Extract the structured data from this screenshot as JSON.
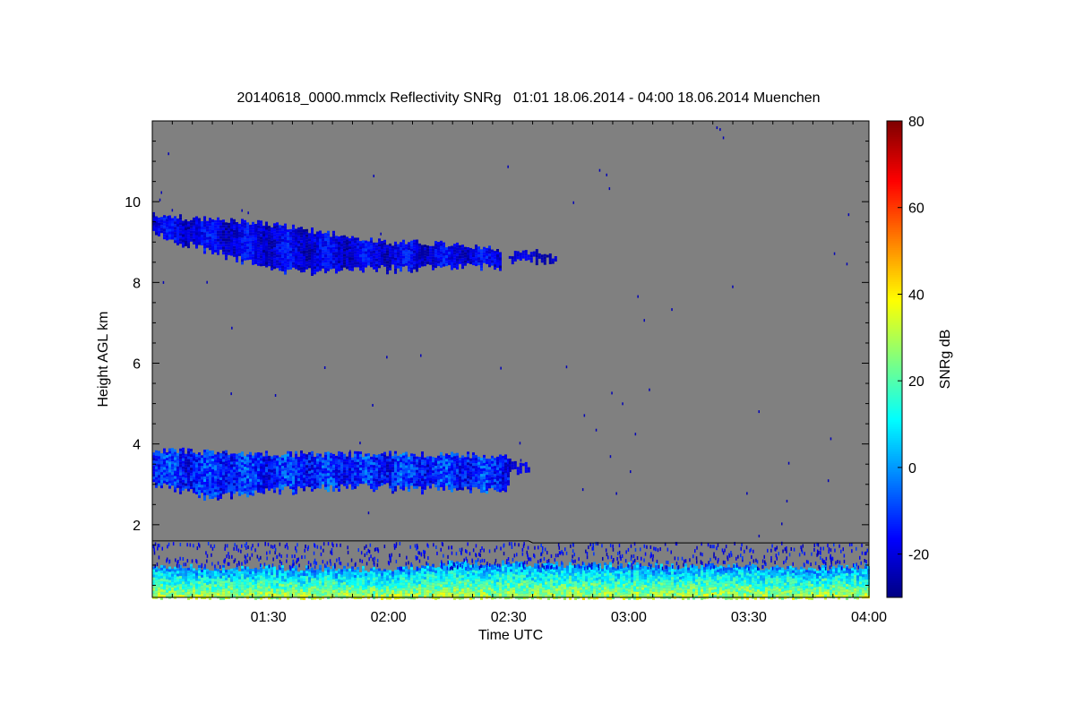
{
  "chart_data": {
    "type": "heatmap",
    "title": "20140618_0000.mmclx Reflectivity SNRg   01:01 18.06.2014 - 04:00 18.06.2014 Muenchen",
    "xlabel": "Time UTC",
    "ylabel": "Height AGL km",
    "xlim_minutes_utc": [
      61,
      240
    ],
    "ylim": [
      0.2,
      12.0
    ],
    "x_ticks": [
      {
        "minute": 90,
        "label": "01:30"
      },
      {
        "minute": 120,
        "label": "02:00"
      },
      {
        "minute": 150,
        "label": "02:30"
      },
      {
        "minute": 180,
        "label": "03:00"
      },
      {
        "minute": 210,
        "label": "03:30"
      },
      {
        "minute": 240,
        "label": "04:00"
      }
    ],
    "y_ticks": [
      {
        "value": 2,
        "label": "2"
      },
      {
        "value": 4,
        "label": "4"
      },
      {
        "value": 6,
        "label": "6"
      },
      {
        "value": 8,
        "label": "8"
      },
      {
        "value": 10,
        "label": "10"
      }
    ],
    "colorbar": {
      "label": "SNRg dB",
      "range": [
        -30,
        80
      ],
      "colormap": "jet",
      "ticks": [
        {
          "value": -20,
          "label": "-20"
        },
        {
          "value": 0,
          "label": "0"
        },
        {
          "value": 20,
          "label": "20"
        },
        {
          "value": 40,
          "label": "40"
        },
        {
          "value": 60,
          "label": "60"
        },
        {
          "value": 80,
          "label": "80"
        }
      ]
    },
    "background_color": "#808080",
    "echo_layers": [
      {
        "name": "cirrus",
        "time": [
          61,
          75,
          90,
          105,
          120,
          135,
          148
        ],
        "top_km": [
          9.65,
          9.55,
          9.45,
          9.2,
          9.0,
          8.95,
          8.8
        ],
        "base_km": [
          9.1,
          8.7,
          8.25,
          8.2,
          8.25,
          8.3,
          8.3
        ],
        "snr_db": [
          -25,
          -5
        ]
      },
      {
        "name": "cirrus-fragment",
        "time": [
          150,
          157,
          162
        ],
        "top_km": [
          8.7,
          8.75,
          8.6
        ],
        "base_km": [
          8.5,
          8.45,
          8.45
        ],
        "snr_db": [
          -25,
          -15
        ]
      },
      {
        "name": "mid-level-cloud",
        "time": [
          61,
          75,
          90,
          110,
          130,
          148,
          150
        ],
        "top_km": [
          3.85,
          3.8,
          3.75,
          3.75,
          3.75,
          3.7,
          3.6
        ],
        "base_km": [
          2.9,
          2.6,
          2.75,
          2.85,
          2.8,
          2.8,
          2.95
        ],
        "snr_db": [
          -22,
          10
        ]
      },
      {
        "name": "mid-level-fragment",
        "time": [
          150,
          153,
          155
        ],
        "top_km": [
          3.55,
          3.5,
          3.45
        ],
        "base_km": [
          3.2,
          3.25,
          3.3
        ],
        "snr_db": [
          -25,
          -15
        ]
      },
      {
        "name": "boundary-layer",
        "time": [
          61,
          120,
          135,
          170,
          210,
          240
        ],
        "top_km": [
          0.95,
          0.9,
          1.05,
          1.0,
          0.95,
          0.95
        ],
        "base_km": [
          0.2,
          0.2,
          0.2,
          0.2,
          0.2,
          0.2
        ],
        "snr_db": [
          -10,
          30
        ]
      }
    ],
    "boundary_line": {
      "time": [
        61,
        155,
        156,
        240
      ],
      "height_km": [
        1.6,
        1.6,
        1.55,
        1.55
      ],
      "color": "#000000"
    }
  }
}
